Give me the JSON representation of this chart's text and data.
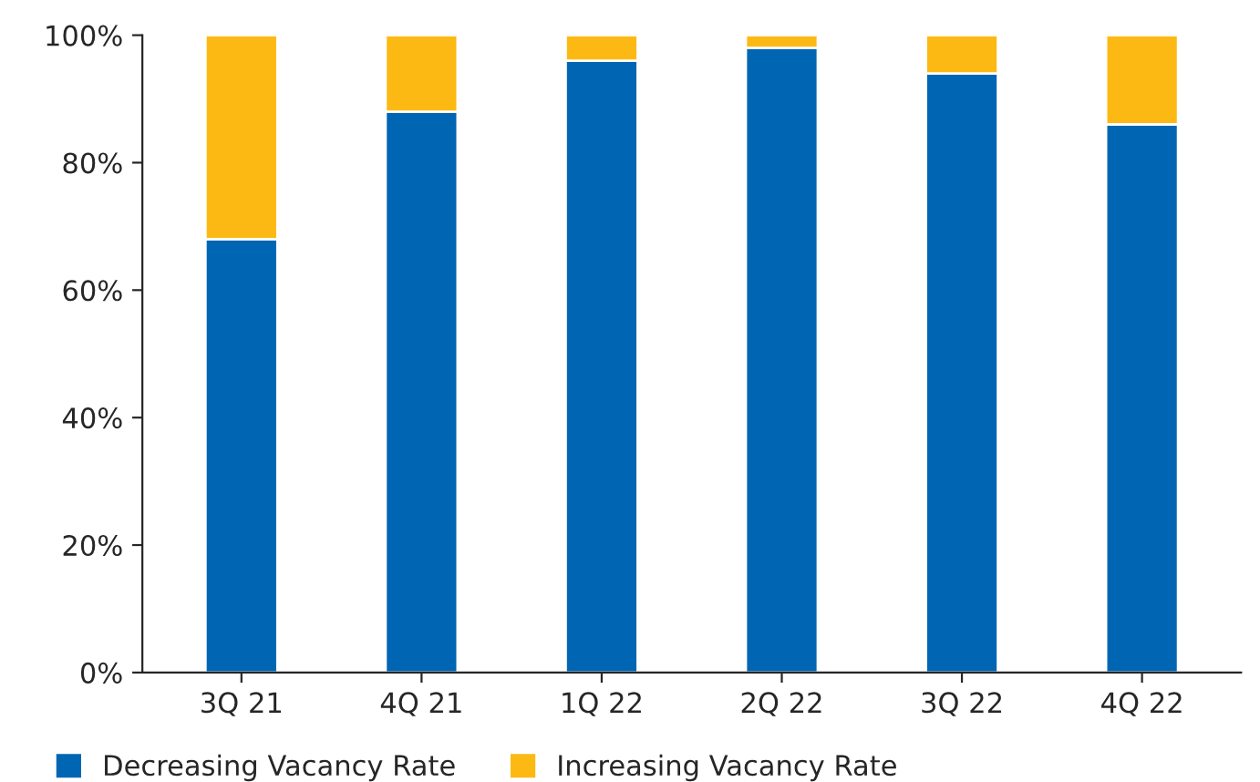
{
  "chart_data": {
    "type": "bar",
    "stacked": true,
    "categories": [
      "3Q 21",
      "4Q 21",
      "1Q 22",
      "2Q 22",
      "3Q 22",
      "4Q 22"
    ],
    "series": [
      {
        "name": "Decreasing Vacancy Rate",
        "color": "#0066b3",
        "values": [
          68,
          88,
          96,
          98,
          94,
          86
        ]
      },
      {
        "name": "Increasing Vacancy Rate",
        "color": "#fdb913",
        "values": [
          32,
          12,
          4,
          2,
          6,
          14
        ]
      }
    ],
    "ylim": [
      0,
      100
    ],
    "yticks": [
      {
        "value": 0,
        "label": "0%"
      },
      {
        "value": 20,
        "label": "20%"
      },
      {
        "value": 40,
        "label": "40%"
      },
      {
        "value": 60,
        "label": "60%"
      },
      {
        "value": 80,
        "label": "80%"
      },
      {
        "value": 100,
        "label": "100%"
      }
    ],
    "grid": false,
    "legend": "bottom left"
  }
}
